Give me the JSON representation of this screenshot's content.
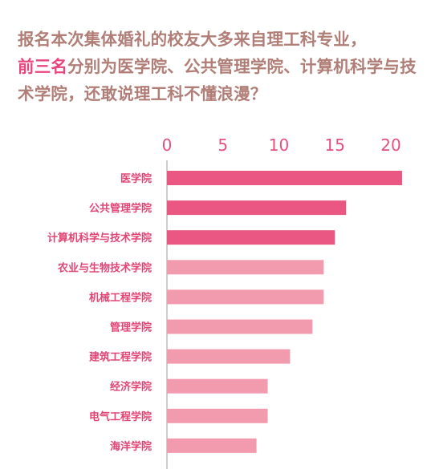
{
  "headline": {
    "line1": "报名本次集体婚礼的校友大多来自理工科专业，",
    "highlight": "前三名",
    "line2_rest": "分别为医学院、公共管理学院、计算机科学与技术学院，还敢说理工科不懂浪漫？"
  },
  "colors": {
    "headline_text": "#b07e76",
    "highlight": "#e8457c",
    "bar_top3": "#e95782",
    "bar_rest": "#f29bae",
    "axis_text": "#e5507f",
    "category_text": "#e14574",
    "axis_line": "#bdbdbd"
  },
  "chart_data": {
    "type": "bar",
    "orientation": "horizontal",
    "xlim": [
      0,
      21
    ],
    "ticks": [
      "0",
      "5",
      "10",
      "15",
      "20"
    ],
    "tick_values": [
      0,
      5,
      10,
      15,
      20
    ],
    "grid": false,
    "axis_position": "top",
    "categories": [
      "医学院",
      "公共管理学院",
      "计算机科学与技术学院",
      "农业与生物技术学院",
      "机械工程学院",
      "管理学院",
      "建筑工程学院",
      "经济学院",
      "电气工程学院",
      "海洋学院"
    ],
    "values": [
      21,
      16,
      15,
      14,
      14,
      13,
      11,
      9,
      9,
      8
    ],
    "highlight_top": 3
  }
}
